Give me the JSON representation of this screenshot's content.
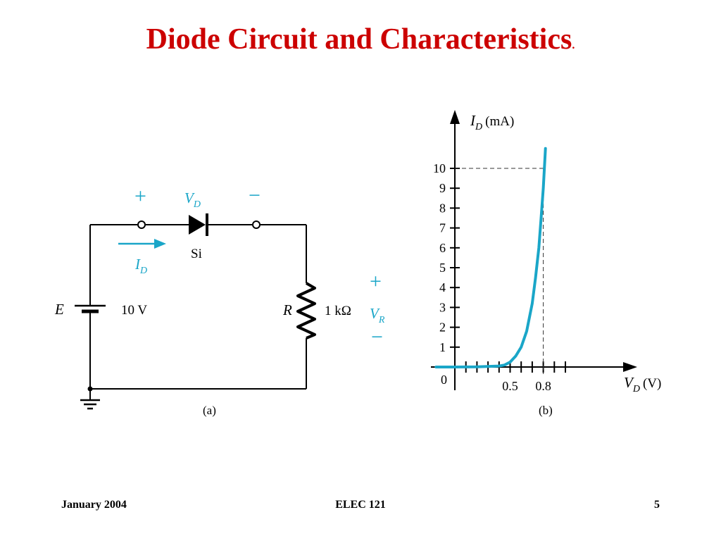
{
  "slide": {
    "title": "Diode Circuit and Characteristics",
    "title_suffix": ".",
    "footer": {
      "date": "January 2004",
      "course": "ELEC 121",
      "page": "5"
    }
  },
  "circuit": {
    "caption": "(a)",
    "source": {
      "label": "E",
      "value": "10 V"
    },
    "diode": {
      "voltage": "V",
      "voltage_sub": "D",
      "plus": "+",
      "minus": "−",
      "material": "Si"
    },
    "current": {
      "label": "I",
      "label_sub": "D"
    },
    "resistor": {
      "label": "R",
      "value": "1 kΩ",
      "voltage": "V",
      "voltage_sub": "R",
      "plus": "+",
      "minus": "−"
    }
  },
  "chart_data": {
    "type": "line",
    "caption": "(b)",
    "ylabel": "I",
    "ylabel_sub": "D",
    "ylabel_unit": "(mA)",
    "xlabel": "V",
    "xlabel_sub": "D",
    "xlabel_unit": "(V)",
    "origin_label": "0",
    "ylim": [
      0,
      11
    ],
    "xlim": [
      0,
      1.0
    ],
    "y_ticks": [
      1,
      2,
      3,
      4,
      5,
      6,
      7,
      8,
      9,
      10
    ],
    "y_tick_labels": [
      "1",
      "2",
      "3",
      "4",
      "5",
      "6",
      "7",
      "8",
      "9",
      "10"
    ],
    "x_ticks": [
      0.1,
      0.2,
      0.3,
      0.4,
      0.5,
      0.6,
      0.7,
      0.8,
      0.9,
      1.0
    ],
    "x_tick_labels": [
      {
        "value": 0.5,
        "label": "0.5"
      },
      {
        "value": 0.8,
        "label": "0.8"
      }
    ],
    "operating_point": {
      "x": 0.8,
      "y": 10
    },
    "series": [
      {
        "color": "#1aa6c8",
        "x": [
          -0.17,
          0.0,
          0.2,
          0.4,
          0.45,
          0.5,
          0.55,
          0.6,
          0.65,
          0.7,
          0.73,
          0.76,
          0.78,
          0.8,
          0.82
        ],
        "y": [
          0.0,
          0.0,
          0.01,
          0.05,
          0.1,
          0.25,
          0.55,
          1.0,
          1.8,
          3.2,
          4.5,
          6.0,
          7.5,
          9.0,
          11.0
        ]
      }
    ]
  }
}
